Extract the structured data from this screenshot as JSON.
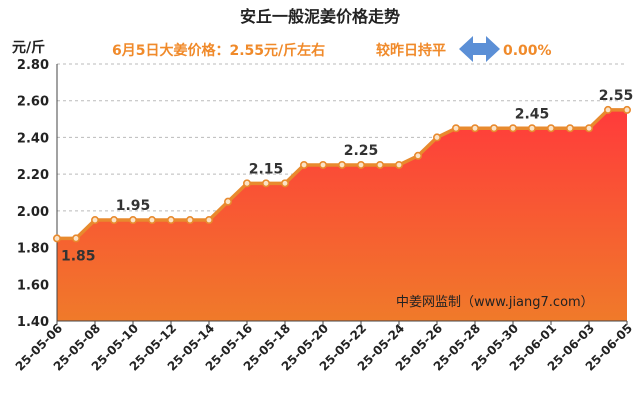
{
  "header": {
    "title": "安丘一般泥姜价格走势",
    "price_line": "6月5日大姜价格：2.55元/斤左右",
    "compare_text": "较昨日持平",
    "change_pct": "0.00%",
    "compare_icon": "left-right-arrow-icon",
    "unit": "元/斤",
    "source": "中姜网监制（www.jiang7.com）"
  },
  "colors": {
    "accent_orange": "#f08a2a",
    "arrow_blue": "#5b8fd6",
    "fill_top": "#ff3b3b",
    "fill_bottom": "#f07a2a",
    "line": "#e88a2e"
  },
  "chart_data": {
    "type": "area",
    "title": "安丘一般泥姜价格走势",
    "ylabel": "元/斤",
    "xlabel": "",
    "ylim": [
      1.4,
      2.8
    ],
    "yticks": [
      "1.40",
      "1.60",
      "1.80",
      "2.00",
      "2.20",
      "2.40",
      "2.60",
      "2.80"
    ],
    "grid": true,
    "x": [
      "25-05-06",
      "25-05-07",
      "25-05-08",
      "25-05-09",
      "25-05-10",
      "25-05-11",
      "25-05-12",
      "25-05-13",
      "25-05-14",
      "25-05-15",
      "25-05-16",
      "25-05-17",
      "25-05-18",
      "25-05-19",
      "25-05-20",
      "25-05-21",
      "25-05-22",
      "25-05-23",
      "25-05-24",
      "25-05-25",
      "25-05-26",
      "25-05-27",
      "25-05-28",
      "25-05-29",
      "25-05-30",
      "25-05-31",
      "25-06-01",
      "25-06-02",
      "25-06-03",
      "25-06-04",
      "25-06-05"
    ],
    "xtick_labels": [
      "25-05-06",
      "25-05-08",
      "25-05-10",
      "25-05-12",
      "25-05-14",
      "25-05-16",
      "25-05-18",
      "25-05-20",
      "25-05-22",
      "25-05-24",
      "25-05-26",
      "25-05-28",
      "25-05-30",
      "25-06-01",
      "25-06-03",
      "25-06-05"
    ],
    "values": [
      1.85,
      1.85,
      1.95,
      1.95,
      1.95,
      1.95,
      1.95,
      1.95,
      1.95,
      2.05,
      2.15,
      2.15,
      2.15,
      2.25,
      2.25,
      2.25,
      2.25,
      2.25,
      2.25,
      2.3,
      2.4,
      2.45,
      2.45,
      2.45,
      2.45,
      2.45,
      2.45,
      2.45,
      2.45,
      2.55,
      2.55
    ],
    "data_labels": [
      {
        "index": 0,
        "text": "1.85"
      },
      {
        "index": 4,
        "text": "1.95"
      },
      {
        "index": 11,
        "text": "2.15"
      },
      {
        "index": 16,
        "text": "2.25"
      },
      {
        "index": 25,
        "text": "2.45"
      },
      {
        "index": 29,
        "text": "2.55"
      }
    ]
  }
}
